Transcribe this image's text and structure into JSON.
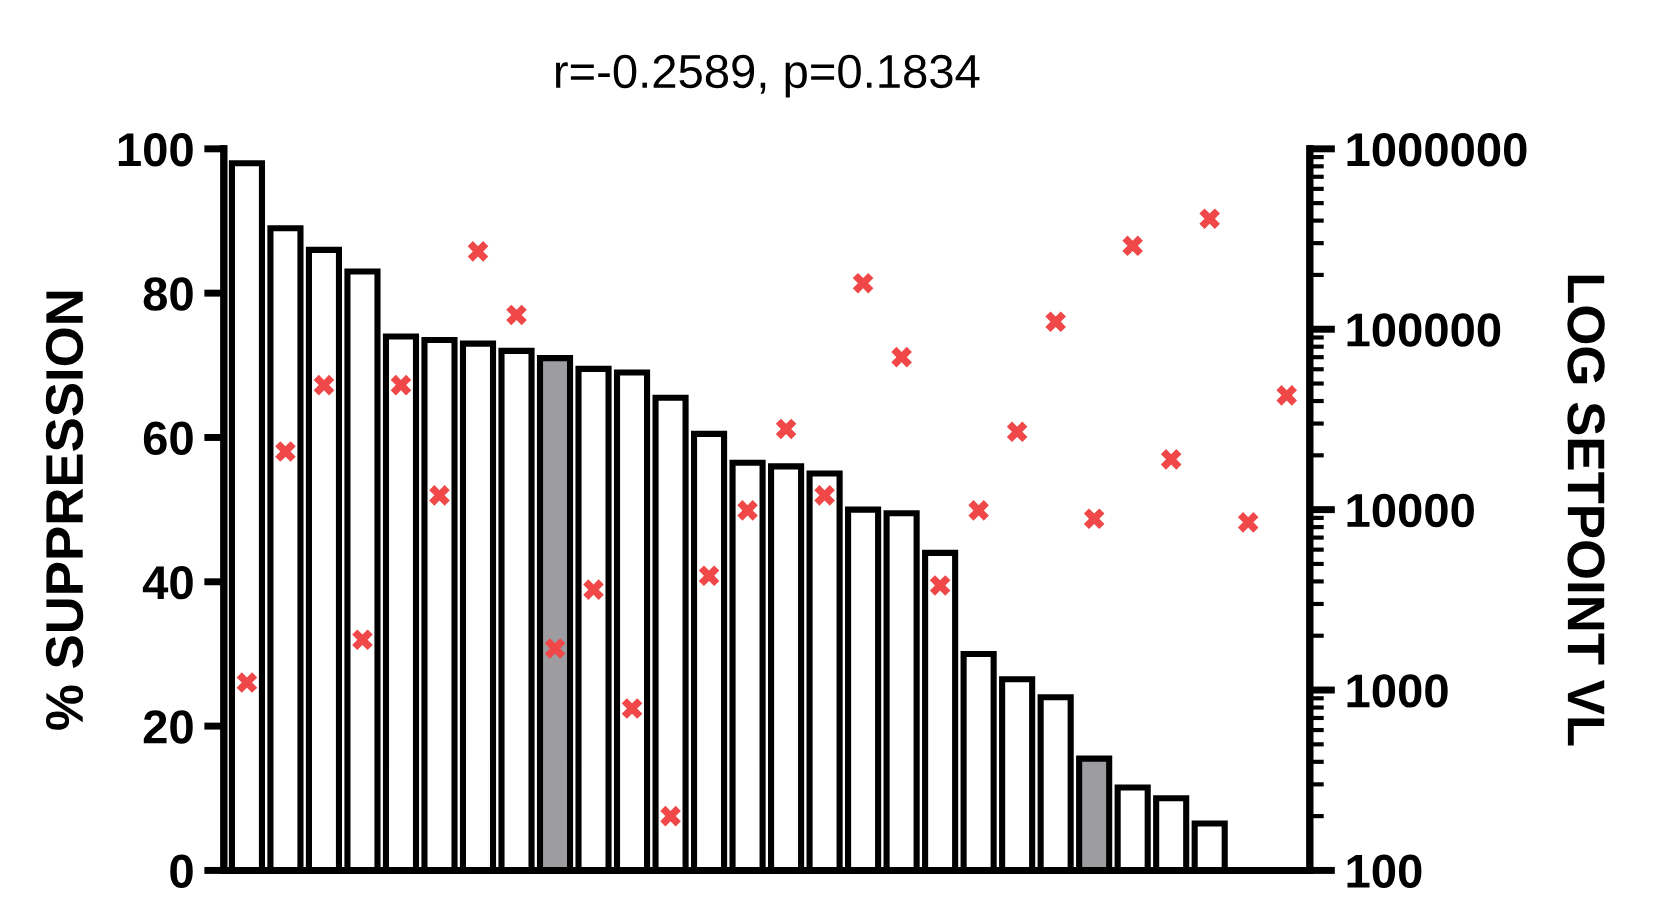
{
  "chart_data": {
    "type": "bar",
    "title": "r=-0.2589, p=0.1834",
    "ylabel": "% SUPPRESSION",
    "y2label": "LOG SETPOINT VL",
    "categories": [
      null,
      null,
      null,
      null,
      null,
      null,
      null,
      null,
      null,
      null,
      null,
      null,
      null,
      null,
      null,
      null,
      null,
      null,
      null,
      null,
      null,
      null,
      null,
      null,
      null,
      null,
      null,
      null
    ],
    "series": [
      {
        "colors": [
          "#ffffff",
          "#ffffff",
          "#ffffff",
          "#ffffff",
          "#ffffff",
          "#ffffff",
          "#ffffff",
          "#ffffff",
          "#9d9da1",
          "#ffffff",
          "#ffffff",
          "#ffffff",
          "#ffffff",
          "#ffffff",
          "#ffffff",
          "#ffffff",
          "#ffffff",
          "#ffffff",
          "#ffffff",
          "#ffffff",
          "#ffffff",
          "#ffffff",
          "#9d9da1",
          "#ffffff",
          "#ffffff",
          "#ffffff",
          null,
          null
        ],
        "values": [
          98,
          89,
          86,
          83,
          74,
          73.5,
          73,
          72,
          71,
          69.5,
          69,
          65.5,
          60.5,
          56.5,
          56,
          55,
          50,
          49.5,
          44,
          30,
          26.5,
          24,
          15.5,
          11.5,
          10,
          6.5,
          null,
          null
        ]
      },
      {
        "type": "scatter",
        "axis": "y2",
        "color": "#f04848",
        "marker": "cross",
        "values": [
          1100,
          21000,
          49000,
          1900,
          49000,
          12000,
          270000,
          120000,
          1700,
          3600,
          790,
          200,
          4300,
          9900,
          28000,
          12000,
          180000,
          70000,
          3800,
          9900,
          27000,
          110000,
          8900,
          290000,
          19000,
          410000,
          8500,
          43000
        ]
      }
    ],
    "ylim": [
      0,
      100
    ],
    "yticks": [
      0,
      20,
      40,
      60,
      80,
      100
    ],
    "log": "y2",
    "y2lim": [
      100,
      1000000
    ],
    "y2ticks": [
      100,
      1000,
      10000,
      100000,
      1000000
    ],
    "grid": false,
    "legend": false
  }
}
